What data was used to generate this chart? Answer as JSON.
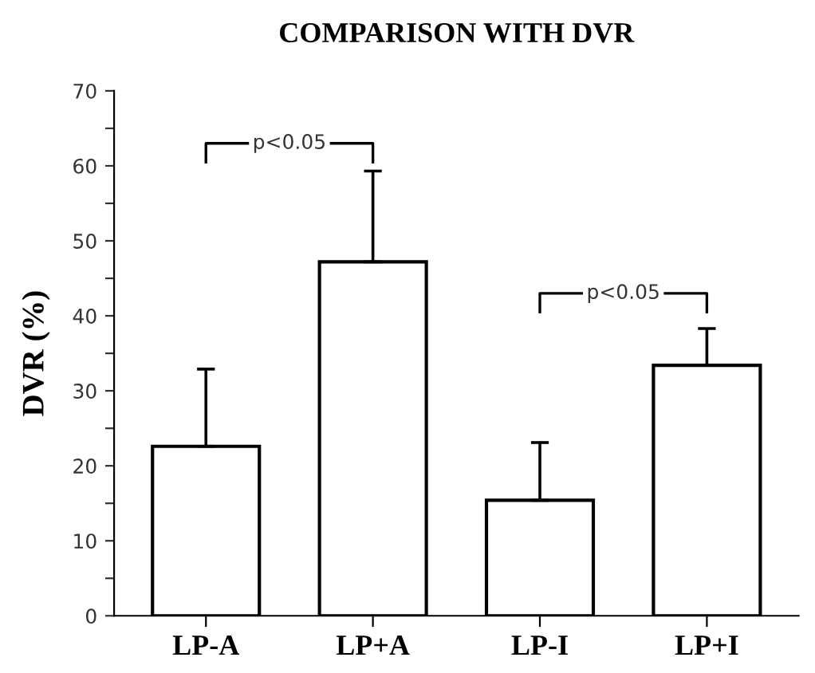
{
  "chart_data": {
    "type": "bar",
    "title": "COMPARISON WITH DVR",
    "ylabel": "DVR (%)",
    "categories": [
      "LP-A",
      "LP+A",
      "LP-I",
      "LP+I"
    ],
    "values": [
      22.6,
      47.2,
      15.4,
      33.4
    ],
    "errors": [
      [
        22.6,
        32.9
      ],
      [
        47.2,
        59.3
      ],
      [
        15.4,
        23.1
      ],
      [
        33.4,
        38.3
      ]
    ],
    "color": "#ffffff",
    "ylim": [
      0,
      70
    ],
    "yticks": [
      0,
      {
        "value": 5,
        "label": null
      },
      10,
      {
        "value": 15,
        "label": null
      },
      20,
      {
        "value": 25,
        "label": null
      },
      30,
      {
        "value": 35,
        "label": null
      },
      40,
      {
        "value": 45,
        "label": null
      },
      50,
      {
        "value": 55,
        "label": null
      },
      60,
      {
        "value": 65,
        "label": null
      },
      70
    ],
    "annotations": [
      "p<0.05",
      "p<0.05"
    ],
    "grid": false,
    "legend": false
  }
}
